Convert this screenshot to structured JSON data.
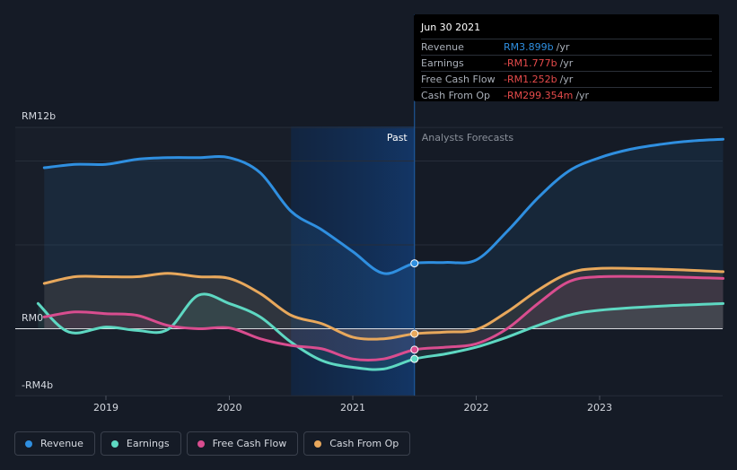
{
  "chart_data": {
    "type": "line",
    "x_range": [
      2018.45,
      2024.0
    ],
    "ylim": [
      -4,
      12
    ],
    "y_ticks": [
      {
        "value": 12,
        "label": "RM12b"
      },
      {
        "value": 0,
        "label": "RM0"
      },
      {
        "value": -4,
        "label": "-RM4b"
      }
    ],
    "x_ticks": [
      {
        "value": 2019,
        "label": "2019"
      },
      {
        "value": 2020,
        "label": "2020"
      },
      {
        "value": 2021,
        "label": "2021"
      },
      {
        "value": 2022,
        "label": "2022"
      },
      {
        "value": 2023,
        "label": "2023"
      }
    ],
    "past_label": "Past",
    "forecast_label": "Analysts Forecasts",
    "past_end": 2021.5,
    "highlight_start": 2020.5,
    "series": [
      {
        "name": "Revenue",
        "color": "#2f8fe0",
        "points": [
          [
            2018.5,
            9.6
          ],
          [
            2018.75,
            9.8
          ],
          [
            2019.0,
            9.8
          ],
          [
            2019.25,
            10.1
          ],
          [
            2019.5,
            10.2
          ],
          [
            2019.75,
            10.2
          ],
          [
            2020.0,
            10.2
          ],
          [
            2020.25,
            9.3
          ],
          [
            2020.5,
            7.0
          ],
          [
            2020.75,
            5.9
          ],
          [
            2021.0,
            4.6
          ],
          [
            2021.25,
            3.3
          ],
          [
            2021.5,
            3.9
          ],
          [
            2021.75,
            3.95
          ],
          [
            2022.0,
            4.1
          ],
          [
            2022.25,
            5.8
          ],
          [
            2022.5,
            7.8
          ],
          [
            2022.75,
            9.4
          ],
          [
            2023.0,
            10.2
          ],
          [
            2023.25,
            10.7
          ],
          [
            2023.5,
            11.0
          ],
          [
            2023.75,
            11.2
          ],
          [
            2024.0,
            11.3
          ]
        ]
      },
      {
        "name": "Earnings",
        "color": "#5ed8c2",
        "points": [
          [
            2018.45,
            1.5
          ],
          [
            2018.7,
            -0.2
          ],
          [
            2019.0,
            0.1
          ],
          [
            2019.25,
            -0.1
          ],
          [
            2019.5,
            -0.05
          ],
          [
            2019.75,
            2.0
          ],
          [
            2020.0,
            1.5
          ],
          [
            2020.25,
            0.7
          ],
          [
            2020.5,
            -0.8
          ],
          [
            2020.75,
            -1.9
          ],
          [
            2021.0,
            -2.3
          ],
          [
            2021.25,
            -2.4
          ],
          [
            2021.5,
            -1.8
          ],
          [
            2021.75,
            -1.5
          ],
          [
            2022.0,
            -1.1
          ],
          [
            2022.25,
            -0.5
          ],
          [
            2022.5,
            0.2
          ],
          [
            2022.75,
            0.8
          ],
          [
            2023.0,
            1.1
          ],
          [
            2023.5,
            1.35
          ],
          [
            2024.0,
            1.5
          ]
        ]
      },
      {
        "name": "Free Cash Flow",
        "color": "#d94d8f",
        "points": [
          [
            2018.5,
            0.7
          ],
          [
            2018.75,
            1.0
          ],
          [
            2019.0,
            0.9
          ],
          [
            2019.25,
            0.8
          ],
          [
            2019.5,
            0.2
          ],
          [
            2019.75,
            0.0
          ],
          [
            2020.0,
            0.05
          ],
          [
            2020.25,
            -0.6
          ],
          [
            2020.5,
            -1.0
          ],
          [
            2020.75,
            -1.2
          ],
          [
            2021.0,
            -1.8
          ],
          [
            2021.25,
            -1.8
          ],
          [
            2021.5,
            -1.25
          ],
          [
            2021.75,
            -1.1
          ],
          [
            2022.0,
            -0.9
          ],
          [
            2022.25,
            0.0
          ],
          [
            2022.5,
            1.5
          ],
          [
            2022.75,
            2.8
          ],
          [
            2023.0,
            3.1
          ],
          [
            2023.5,
            3.1
          ],
          [
            2024.0,
            3.0
          ]
        ]
      },
      {
        "name": "Cash From Op",
        "color": "#e8a85c",
        "points": [
          [
            2018.5,
            2.7
          ],
          [
            2018.75,
            3.1
          ],
          [
            2019.0,
            3.1
          ],
          [
            2019.25,
            3.1
          ],
          [
            2019.5,
            3.3
          ],
          [
            2019.75,
            3.1
          ],
          [
            2020.0,
            3.0
          ],
          [
            2020.25,
            2.1
          ],
          [
            2020.5,
            0.8
          ],
          [
            2020.75,
            0.3
          ],
          [
            2021.0,
            -0.5
          ],
          [
            2021.25,
            -0.6
          ],
          [
            2021.5,
            -0.3
          ],
          [
            2021.75,
            -0.2
          ],
          [
            2022.0,
            -0.05
          ],
          [
            2022.25,
            1.0
          ],
          [
            2022.5,
            2.3
          ],
          [
            2022.75,
            3.3
          ],
          [
            2023.0,
            3.6
          ],
          [
            2023.5,
            3.55
          ],
          [
            2024.0,
            3.4
          ]
        ]
      }
    ]
  },
  "tooltip": {
    "date": "Jun 30 2021",
    "rows": [
      {
        "label": "Revenue",
        "value": "RM3.899b",
        "unit": "/yr",
        "color": "#2f8fe0"
      },
      {
        "label": "Earnings",
        "value": "-RM1.777b",
        "unit": "/yr",
        "color": "#e64b4b"
      },
      {
        "label": "Free Cash Flow",
        "value": "-RM1.252b",
        "unit": "/yr",
        "color": "#e64b4b"
      },
      {
        "label": "Cash From Op",
        "value": "-RM299.354m",
        "unit": "/yr",
        "color": "#e64b4b"
      }
    ]
  },
  "legend": [
    {
      "label": "Revenue",
      "color": "#2f8fe0"
    },
    {
      "label": "Earnings",
      "color": "#5ed8c2"
    },
    {
      "label": "Free Cash Flow",
      "color": "#d94d8f"
    },
    {
      "label": "Cash From Op",
      "color": "#e8a85c"
    }
  ]
}
